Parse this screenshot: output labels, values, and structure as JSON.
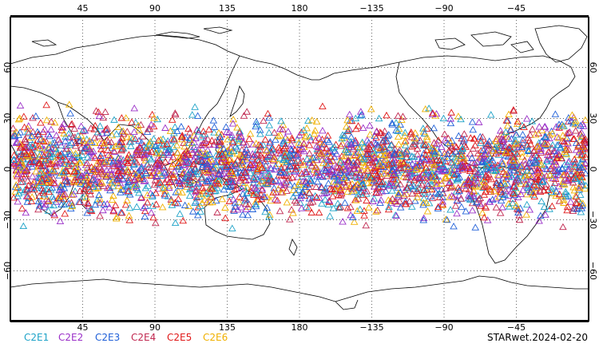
{
  "map": {
    "projection": "cylindrical-equidistant",
    "lon_range": [
      0,
      360
    ],
    "lat_range": [
      -90,
      90
    ],
    "grid": "dotted",
    "frame": "thick-black"
  },
  "axes": {
    "lon_ticks": [
      {
        "lon": 45,
        "label": "45"
      },
      {
        "lon": 90,
        "label": "90"
      },
      {
        "lon": 135,
        "label": "135"
      },
      {
        "lon": 180,
        "label": "180"
      },
      {
        "lon": 225,
        "label": "−135"
      },
      {
        "lon": 270,
        "label": "−90"
      },
      {
        "lon": 315,
        "label": "−45"
      }
    ],
    "lat_ticks": [
      {
        "lat": 60,
        "label": "60"
      },
      {
        "lat": 30,
        "label": "30"
      },
      {
        "lat": 0,
        "label": "0"
      },
      {
        "lat": -30,
        "label": "−30"
      },
      {
        "lat": -60,
        "label": "−60"
      }
    ]
  },
  "observations": {
    "marker": "triangle-icon",
    "lat_band": [
      -40,
      42
    ],
    "count_estimate": 3200
  },
  "legend": {
    "satellites": [
      {
        "name": "C2E1",
        "color": "#1fa3c8"
      },
      {
        "name": "C2E2",
        "color": "#9b30c8"
      },
      {
        "name": "C2E3",
        "color": "#2060d8"
      },
      {
        "name": "C2E4",
        "color": "#c02850"
      },
      {
        "name": "C2E5",
        "color": "#e01818"
      },
      {
        "name": "C2E6",
        "color": "#f0b000"
      }
    ]
  },
  "stamp": "STARwet.2024-02-20",
  "coastline_color": "#000000"
}
